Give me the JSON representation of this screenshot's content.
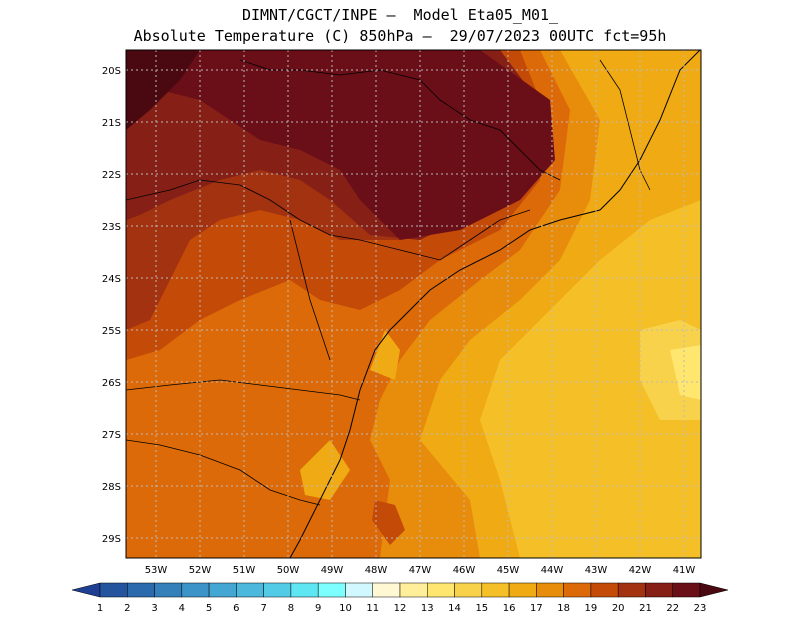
{
  "title": {
    "line1": "DIMNT/CGCT/INPE –  Model Eta05_M01_",
    "line2": "Absolute Temperature (C) 850hPa –  29/07/2023 00UTC fct=95h"
  },
  "axes": {
    "lat_labels": [
      "20S",
      "21S",
      "22S",
      "23S",
      "24S",
      "25S",
      "26S",
      "27S",
      "28S",
      "29S"
    ],
    "lon_labels": [
      "53W",
      "52W",
      "51W",
      "50W",
      "49W",
      "48W",
      "47W",
      "46W",
      "45W",
      "44W",
      "43W",
      "42W",
      "41W"
    ]
  },
  "colorbar": {
    "labels": [
      "1",
      "2",
      "3",
      "4",
      "5",
      "6",
      "7",
      "8",
      "9",
      "10",
      "11",
      "12",
      "13",
      "14",
      "15",
      "16",
      "17",
      "18",
      "19",
      "20",
      "21",
      "22",
      "23"
    ],
    "colors": [
      "#1f3f93",
      "#25549f",
      "#2b6aad",
      "#3380bb",
      "#3b93c8",
      "#44a6d2",
      "#4cb8dc",
      "#52cce6",
      "#5ee6f3",
      "#7dffff",
      "#d2f8ff",
      "#fff8d2",
      "#ffef9a",
      "#ffe66e",
      "#f8d24a",
      "#f5bf28",
      "#efaa14",
      "#e88c0c",
      "#dd6a08",
      "#c44a08",
      "#a33210",
      "#862016",
      "#6a0e18",
      "#4a0810"
    ]
  },
  "map": {
    "description_colors": {
      "ocean_warm": "#efaa14",
      "ocean_cool": "#f5bf28",
      "land_hot": "#6a0e18",
      "land_warm": "#a33210"
    }
  }
}
